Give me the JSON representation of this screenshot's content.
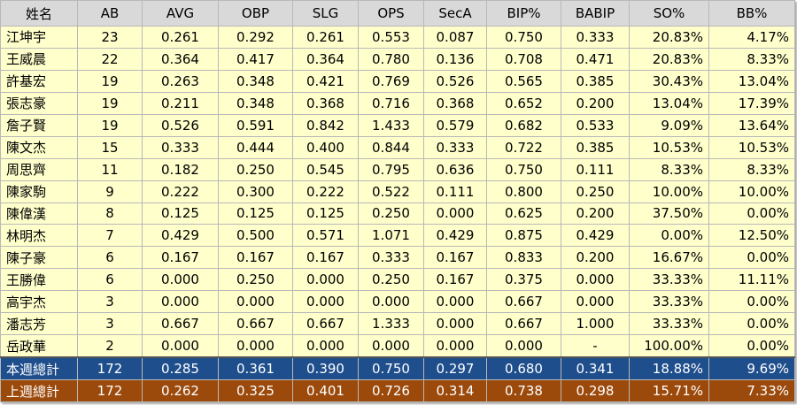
{
  "table": {
    "header": [
      "姓名",
      "AB",
      "AVG",
      "OBP",
      "SLG",
      "OPS",
      "SecA",
      "BIP%",
      "BABIP",
      "SO%",
      "BB%"
    ],
    "rows": [
      [
        "江坤宇",
        "23",
        "0.261",
        "0.292",
        "0.261",
        "0.553",
        "0.087",
        "0.750",
        "0.333",
        "20.83%",
        "4.17%"
      ],
      [
        "王威晨",
        "22",
        "0.364",
        "0.417",
        "0.364",
        "0.780",
        "0.136",
        "0.708",
        "0.471",
        "20.83%",
        "8.33%"
      ],
      [
        "許基宏",
        "19",
        "0.263",
        "0.348",
        "0.421",
        "0.769",
        "0.526",
        "0.565",
        "0.385",
        "30.43%",
        "13.04%"
      ],
      [
        "張志豪",
        "19",
        "0.211",
        "0.348",
        "0.368",
        "0.716",
        "0.368",
        "0.652",
        "0.200",
        "13.04%",
        "17.39%"
      ],
      [
        "詹子賢",
        "19",
        "0.526",
        "0.591",
        "0.842",
        "1.433",
        "0.579",
        "0.682",
        "0.533",
        "9.09%",
        "13.64%"
      ],
      [
        "陳文杰",
        "15",
        "0.333",
        "0.444",
        "0.400",
        "0.844",
        "0.333",
        "0.722",
        "0.385",
        "10.53%",
        "10.53%"
      ],
      [
        "周思齊",
        "11",
        "0.182",
        "0.250",
        "0.545",
        "0.795",
        "0.636",
        "0.750",
        "0.111",
        "8.33%",
        "8.33%"
      ],
      [
        "陳家駒",
        "9",
        "0.222",
        "0.300",
        "0.222",
        "0.522",
        "0.111",
        "0.800",
        "0.250",
        "10.00%",
        "10.00%"
      ],
      [
        "陳偉漢",
        "8",
        "0.125",
        "0.125",
        "0.125",
        "0.250",
        "0.000",
        "0.625",
        "0.200",
        "37.50%",
        "0.00%"
      ],
      [
        "林明杰",
        "7",
        "0.429",
        "0.500",
        "0.571",
        "1.071",
        "0.429",
        "0.875",
        "0.429",
        "0.00%",
        "12.50%"
      ],
      [
        "陳子豪",
        "6",
        "0.167",
        "0.167",
        "0.167",
        "0.333",
        "0.167",
        "0.833",
        "0.200",
        "16.67%",
        "0.00%"
      ],
      [
        "王勝偉",
        "6",
        "0.000",
        "0.250",
        "0.000",
        "0.250",
        "0.167",
        "0.375",
        "0.000",
        "33.33%",
        "11.11%"
      ],
      [
        "高宇杰",
        "3",
        "0.000",
        "0.000",
        "0.000",
        "0.000",
        "0.000",
        "0.667",
        "0.000",
        "33.33%",
        "0.00%"
      ],
      [
        "潘志芳",
        "3",
        "0.667",
        "0.667",
        "0.667",
        "1.333",
        "0.000",
        "0.667",
        "1.000",
        "33.33%",
        "0.00%"
      ],
      [
        "岳政華",
        "2",
        "0.000",
        "0.000",
        "0.000",
        "0.000",
        "0.000",
        "0.000",
        "-",
        "100.00%",
        "0.00%"
      ]
    ],
    "totals": [
      [
        "本週總計",
        "172",
        "0.285",
        "0.361",
        "0.390",
        "0.750",
        "0.297",
        "0.680",
        "0.341",
        "18.88%",
        "9.69%"
      ],
      [
        "上週總計",
        "172",
        "0.262",
        "0.325",
        "0.401",
        "0.726",
        "0.314",
        "0.738",
        "0.298",
        "15.71%",
        "7.33%"
      ]
    ]
  }
}
